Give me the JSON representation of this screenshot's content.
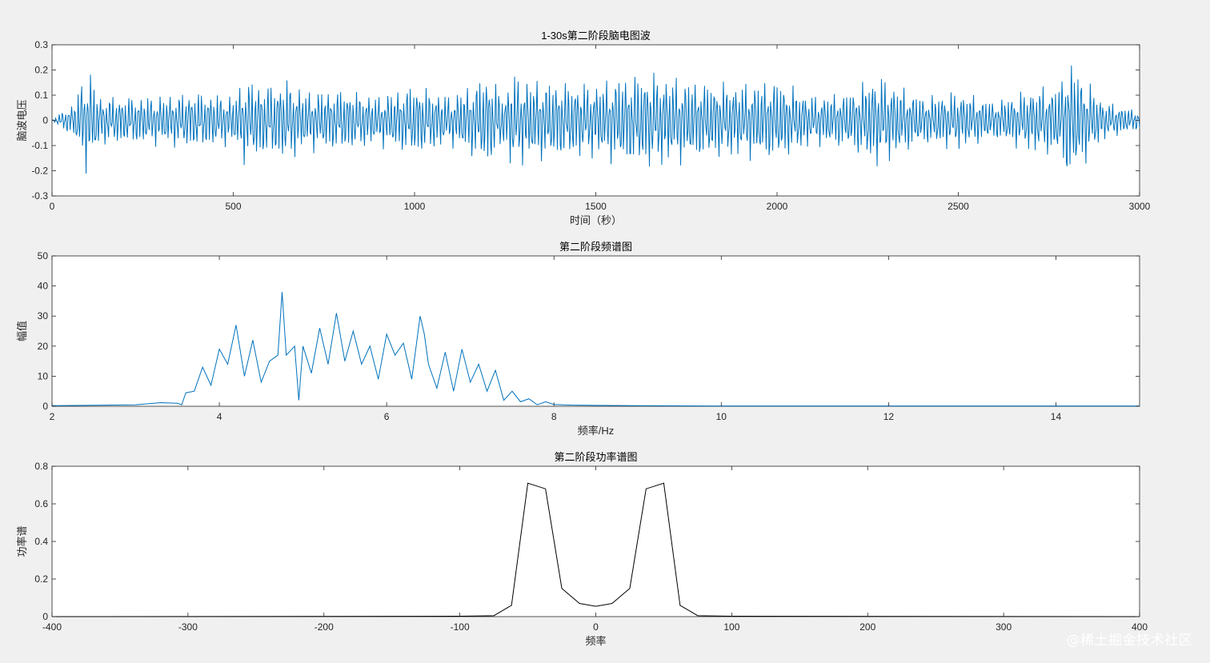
{
  "watermark": "@稀土掘金技术社区",
  "chart_data": [
    {
      "type": "line",
      "id": "eeg",
      "title": "1-30s第二阶段脑电图波",
      "xlabel": "时间（秒）",
      "ylabel": "脑波电压",
      "xlim": [
        0,
        3000
      ],
      "ylim": [
        -0.3,
        0.3
      ],
      "xticks": [
        0,
        500,
        1000,
        1500,
        2000,
        2500,
        3000
      ],
      "xtick_labels": [
        "0",
        "500",
        "1000",
        "1500",
        "2000",
        "2500",
        "3000"
      ],
      "yticks": [
        -0.3,
        -0.2,
        -0.1,
        0,
        0.1,
        0.2,
        0.3
      ],
      "ytick_labels": [
        "-0.3",
        "-0.2",
        "-0.1",
        "0",
        "0.1",
        "0.2",
        "0.3"
      ],
      "color": "#0072BD",
      "grid": false,
      "series": [
        {
          "x": [
            0,
            30,
            60,
            80,
            95,
            110,
            130,
            200,
            300,
            400,
            500,
            530,
            600,
            650,
            700,
            800,
            900,
            1000,
            1100,
            1190,
            1200,
            1250,
            1265,
            1300,
            1400,
            1500,
            1560,
            1600,
            1640,
            1700,
            1800,
            1900,
            2000,
            2100,
            2200,
            2270,
            2300,
            2400,
            2500,
            2600,
            2700,
            2780,
            2800,
            2812,
            2830,
            2900,
            3000
          ],
          "values": [
            0,
            0.04,
            -0.07,
            0.16,
            -0.2,
            0.19,
            -0.1,
            0.1,
            -0.1,
            0.12,
            -0.1,
            0.17,
            -0.15,
            0.17,
            -0.12,
            0.13,
            -0.1,
            0.15,
            -0.1,
            0.18,
            -0.2,
            0.1,
            0.2,
            -0.17,
            0.16,
            -0.15,
            0.18,
            -0.19,
            0.2,
            -0.18,
            0.16,
            -0.15,
            0.17,
            -0.1,
            0.12,
            -0.19,
            0.17,
            -0.1,
            0.12,
            -0.08,
            0.13,
            -0.15,
            0.25,
            -0.25,
            0.21,
            -0.08,
            0.04
          ]
        }
      ]
    },
    {
      "type": "line",
      "id": "spectrum",
      "title": "第二阶段频谱图",
      "xlabel": "频率/Hz",
      "ylabel": "幅值",
      "xlim": [
        2,
        15
      ],
      "ylim": [
        0,
        50
      ],
      "xticks": [
        2,
        4,
        6,
        8,
        10,
        12,
        14
      ],
      "xtick_labels": [
        "2",
        "4",
        "6",
        "8",
        "10",
        "12",
        "14"
      ],
      "yticks": [
        0,
        10,
        20,
        30,
        40,
        50
      ],
      "ytick_labels": [
        "0",
        "10",
        "20",
        "30",
        "40",
        "50"
      ],
      "color": "#0072BD",
      "grid": false,
      "series": [
        {
          "x": [
            2,
            3.0,
            3.3,
            3.5,
            3.55,
            3.6,
            3.7,
            3.8,
            3.9,
            4.0,
            4.1,
            4.2,
            4.3,
            4.4,
            4.5,
            4.6,
            4.7,
            4.75,
            4.8,
            4.9,
            4.95,
            5.0,
            5.1,
            5.2,
            5.3,
            5.4,
            5.5,
            5.6,
            5.7,
            5.8,
            5.9,
            6.0,
            6.1,
            6.2,
            6.3,
            6.4,
            6.45,
            6.5,
            6.6,
            6.7,
            6.8,
            6.9,
            7.0,
            7.1,
            7.2,
            7.3,
            7.4,
            7.5,
            7.6,
            7.7,
            7.8,
            7.9,
            8.0,
            8.2,
            8.5,
            9.0,
            10,
            12,
            15
          ],
          "values": [
            0.2,
            0.5,
            1.2,
            1,
            0.5,
            4.5,
            5,
            13,
            7,
            19,
            14,
            27,
            10,
            22,
            8,
            15,
            17,
            38,
            17,
            20,
            2,
            20,
            11,
            26,
            14,
            31,
            15,
            25,
            14,
            20,
            9,
            24,
            17,
            21,
            9,
            30,
            24,
            14,
            6,
            18,
            5,
            19,
            8,
            14,
            5,
            12,
            2,
            5,
            1.5,
            2.5,
            0.5,
            1.5,
            0.6,
            0.4,
            0.3,
            0.2,
            0.1,
            0.1,
            0.1
          ]
        }
      ]
    },
    {
      "type": "line",
      "id": "power",
      "title": "第二阶段功率谱图",
      "xlabel": "频率",
      "ylabel": "功率谱",
      "xlim": [
        -400,
        400
      ],
      "ylim": [
        0,
        0.8
      ],
      "xticks": [
        -400,
        -300,
        -200,
        -100,
        0,
        100,
        200,
        300,
        400
      ],
      "xtick_labels": [
        "-400",
        "-300",
        "-200",
        "-100",
        "0",
        "100",
        "200",
        "300",
        "400"
      ],
      "yticks": [
        0,
        0.2,
        0.4,
        0.6,
        0.8
      ],
      "ytick_labels": [
        "0",
        "0.2",
        "0.4",
        "0.6",
        "0.8"
      ],
      "color": "#000000",
      "grid": false,
      "series": [
        {
          "x": [
            -400,
            -100,
            -75,
            -62,
            -50,
            -37,
            -25,
            -12,
            0,
            12,
            25,
            37,
            50,
            62,
            75,
            100,
            400
          ],
          "values": [
            0,
            0.002,
            0.005,
            0.06,
            0.71,
            0.68,
            0.15,
            0.07,
            0.055,
            0.07,
            0.15,
            0.68,
            0.71,
            0.06,
            0.005,
            0.002,
            0
          ]
        }
      ]
    }
  ]
}
